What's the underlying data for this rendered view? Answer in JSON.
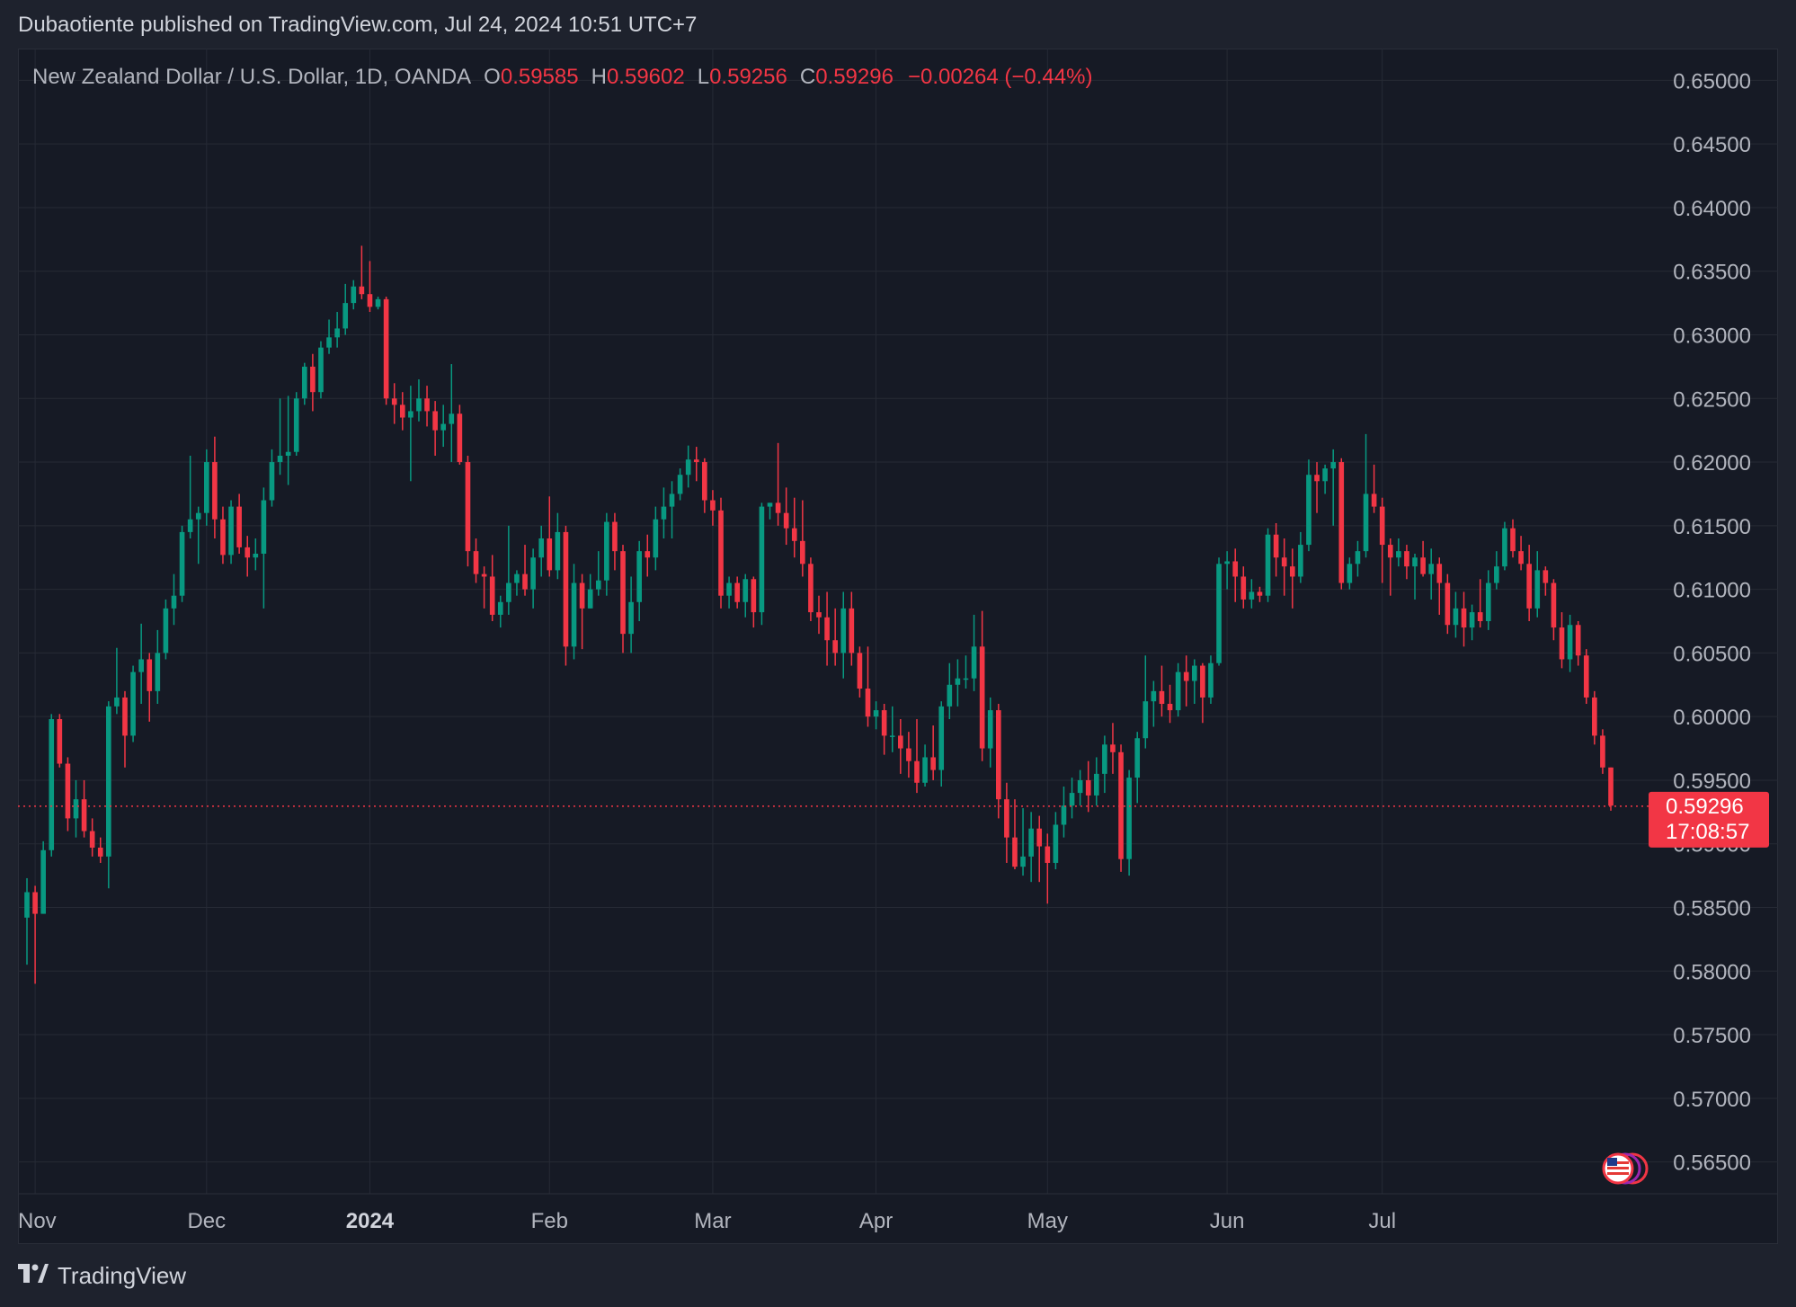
{
  "header": {
    "published_text": "Dubaotiente published on TradingView.com, Jul 24, 2024 10:51 UTC+7"
  },
  "legend": {
    "symbol": "New Zealand Dollar / U.S. Dollar, 1D, OANDA",
    "o_label": "O",
    "o_value": "0.59585",
    "h_label": "H",
    "h_value": "0.59602",
    "l_label": "L",
    "l_value": "0.59256",
    "c_label": "C",
    "c_value": "0.59296",
    "change": "−0.00264 (−0.44%)"
  },
  "price_tag": {
    "price": "0.59296",
    "countdown": "17:08:57"
  },
  "footer": {
    "brand": "TradingView"
  },
  "colors": {
    "up": "#089981",
    "down": "#f23645",
    "bg": "#161a25",
    "grid": "#262a35",
    "text": "#b2b5be"
  },
  "chart_data": {
    "type": "candlestick",
    "ylim": [
      0.5625,
      0.6525
    ],
    "yticks": [
      "0.65000",
      "0.64500",
      "0.64000",
      "0.63500",
      "0.63000",
      "0.62500",
      "0.62000",
      "0.61500",
      "0.61000",
      "0.60500",
      "0.60000",
      "0.59500",
      "0.59000",
      "0.58500",
      "0.58000",
      "0.57500",
      "0.57000",
      "0.56500"
    ],
    "xticks": [
      {
        "label": "Nov",
        "index": 1,
        "bold": false
      },
      {
        "label": "Dec",
        "index": 22,
        "bold": false
      },
      {
        "label": "2024",
        "index": 42,
        "bold": true
      },
      {
        "label": "Feb",
        "index": 64,
        "bold": false
      },
      {
        "label": "Mar",
        "index": 84,
        "bold": false
      },
      {
        "label": "Apr",
        "index": 104,
        "bold": false
      },
      {
        "label": "May",
        "index": 125,
        "bold": false
      },
      {
        "label": "Jun",
        "index": 147,
        "bold": false
      },
      {
        "label": "Jul",
        "index": 166,
        "bold": false
      }
    ],
    "last_close": 0.59296,
    "candles": [
      [
        0.5842,
        0.5873,
        0.5805,
        0.5862
      ],
      [
        0.5862,
        0.5867,
        0.579,
        0.5845
      ],
      [
        0.5845,
        0.5902,
        0.5845,
        0.5895
      ],
      [
        0.5895,
        0.6002,
        0.589,
        0.5998
      ],
      [
        0.5998,
        0.6002,
        0.596,
        0.5963
      ],
      [
        0.5963,
        0.5968,
        0.591,
        0.592
      ],
      [
        0.592,
        0.595,
        0.5905,
        0.5935
      ],
      [
        0.5935,
        0.595,
        0.5905,
        0.591
      ],
      [
        0.591,
        0.592,
        0.589,
        0.5897
      ],
      [
        0.5897,
        0.5905,
        0.5885,
        0.589
      ],
      [
        0.589,
        0.6012,
        0.5865,
        0.6008
      ],
      [
        0.6008,
        0.6054,
        0.6002,
        0.6015
      ],
      [
        0.6015,
        0.602,
        0.596,
        0.5985
      ],
      [
        0.5985,
        0.604,
        0.598,
        0.6035
      ],
      [
        0.6035,
        0.6073,
        0.601,
        0.6045
      ],
      [
        0.6045,
        0.605,
        0.5996,
        0.602
      ],
      [
        0.602,
        0.6068,
        0.601,
        0.605
      ],
      [
        0.605,
        0.6092,
        0.6045,
        0.6085
      ],
      [
        0.6085,
        0.6112,
        0.6072,
        0.6095
      ],
      [
        0.6095,
        0.615,
        0.609,
        0.6145
      ],
      [
        0.6145,
        0.6205,
        0.614,
        0.6155
      ],
      [
        0.6155,
        0.6165,
        0.612,
        0.616
      ],
      [
        0.616,
        0.621,
        0.615,
        0.62
      ],
      [
        0.62,
        0.622,
        0.614,
        0.6155
      ],
      [
        0.6155,
        0.6165,
        0.612,
        0.6127
      ],
      [
        0.6127,
        0.617,
        0.612,
        0.6165
      ],
      [
        0.6165,
        0.6175,
        0.6128,
        0.6133
      ],
      [
        0.6133,
        0.6142,
        0.611,
        0.6125
      ],
      [
        0.6125,
        0.614,
        0.6115,
        0.6128
      ],
      [
        0.6128,
        0.618,
        0.6085,
        0.617
      ],
      [
        0.617,
        0.621,
        0.6165,
        0.62
      ],
      [
        0.62,
        0.625,
        0.619,
        0.6205
      ],
      [
        0.6205,
        0.6252,
        0.6182,
        0.6208
      ],
      [
        0.6208,
        0.6255,
        0.6205,
        0.625
      ],
      [
        0.625,
        0.6278,
        0.6245,
        0.6275
      ],
      [
        0.6275,
        0.6285,
        0.624,
        0.6255
      ],
      [
        0.6255,
        0.6295,
        0.625,
        0.629
      ],
      [
        0.629,
        0.6312,
        0.6285,
        0.6298
      ],
      [
        0.6298,
        0.6318,
        0.629,
        0.6305
      ],
      [
        0.6305,
        0.634,
        0.63,
        0.6325
      ],
      [
        0.6325,
        0.6343,
        0.632,
        0.6338
      ],
      [
        0.6338,
        0.637,
        0.6328,
        0.6332
      ],
      [
        0.6332,
        0.6358,
        0.6318,
        0.6322
      ],
      [
        0.6322,
        0.633,
        0.632,
        0.6328
      ],
      [
        0.6328,
        0.633,
        0.6245,
        0.625
      ],
      [
        0.625,
        0.6262,
        0.623,
        0.6245
      ],
      [
        0.6245,
        0.6255,
        0.6225,
        0.6235
      ],
      [
        0.6235,
        0.626,
        0.6185,
        0.624
      ],
      [
        0.624,
        0.6265,
        0.6232,
        0.625
      ],
      [
        0.625,
        0.626,
        0.6228,
        0.624
      ],
      [
        0.624,
        0.6248,
        0.6205,
        0.6225
      ],
      [
        0.6225,
        0.6245,
        0.6212,
        0.623
      ],
      [
        0.623,
        0.6277,
        0.62,
        0.6238
      ],
      [
        0.6238,
        0.6245,
        0.6198,
        0.62
      ],
      [
        0.62,
        0.6205,
        0.6118,
        0.613
      ],
      [
        0.613,
        0.614,
        0.6105,
        0.6112
      ],
      [
        0.6112,
        0.6118,
        0.6085,
        0.611
      ],
      [
        0.611,
        0.6127,
        0.6075,
        0.608
      ],
      [
        0.608,
        0.6095,
        0.607,
        0.609
      ],
      [
        0.609,
        0.615,
        0.608,
        0.6105
      ],
      [
        0.6105,
        0.6115,
        0.6095,
        0.6112
      ],
      [
        0.6112,
        0.6135,
        0.6095,
        0.61
      ],
      [
        0.61,
        0.6132,
        0.6085,
        0.6125
      ],
      [
        0.6125,
        0.615,
        0.611,
        0.614
      ],
      [
        0.614,
        0.6173,
        0.611,
        0.6115
      ],
      [
        0.6115,
        0.616,
        0.6108,
        0.6145
      ],
      [
        0.6145,
        0.615,
        0.604,
        0.6055
      ],
      [
        0.6055,
        0.612,
        0.6045,
        0.6105
      ],
      [
        0.6105,
        0.6112,
        0.6053,
        0.6085
      ],
      [
        0.6085,
        0.6112,
        0.6085,
        0.61
      ],
      [
        0.61,
        0.613,
        0.6095,
        0.6107
      ],
      [
        0.6107,
        0.616,
        0.6095,
        0.6153
      ],
      [
        0.6153,
        0.616,
        0.6115,
        0.613
      ],
      [
        0.613,
        0.6135,
        0.605,
        0.6065
      ],
      [
        0.6065,
        0.611,
        0.605,
        0.609
      ],
      [
        0.609,
        0.6138,
        0.6075,
        0.613
      ],
      [
        0.613,
        0.6143,
        0.611,
        0.6125
      ],
      [
        0.6125,
        0.6165,
        0.6115,
        0.6155
      ],
      [
        0.6155,
        0.618,
        0.614,
        0.6165
      ],
      [
        0.6165,
        0.6185,
        0.614,
        0.6175
      ],
      [
        0.6175,
        0.6195,
        0.617,
        0.619
      ],
      [
        0.619,
        0.6213,
        0.618,
        0.6202
      ],
      [
        0.6202,
        0.6212,
        0.6185,
        0.62
      ],
      [
        0.62,
        0.6203,
        0.616,
        0.617
      ],
      [
        0.617,
        0.6178,
        0.615,
        0.6162
      ],
      [
        0.6162,
        0.6172,
        0.6085,
        0.6095
      ],
      [
        0.6095,
        0.611,
        0.6085,
        0.6105
      ],
      [
        0.6105,
        0.611,
        0.6085,
        0.609
      ],
      [
        0.609,
        0.6112,
        0.6078,
        0.6108
      ],
      [
        0.6108,
        0.611,
        0.607,
        0.6082
      ],
      [
        0.6082,
        0.6168,
        0.6072,
        0.6165
      ],
      [
        0.6165,
        0.6168,
        0.6155,
        0.6168
      ],
      [
        0.6168,
        0.6215,
        0.615,
        0.616
      ],
      [
        0.616,
        0.618,
        0.6135,
        0.6148
      ],
      [
        0.6148,
        0.6172,
        0.6125,
        0.6138
      ],
      [
        0.6138,
        0.617,
        0.611,
        0.612
      ],
      [
        0.612,
        0.6125,
        0.6075,
        0.6082
      ],
      [
        0.6082,
        0.6095,
        0.6065,
        0.6078
      ],
      [
        0.6078,
        0.6098,
        0.604,
        0.606
      ],
      [
        0.606,
        0.6085,
        0.604,
        0.605
      ],
      [
        0.605,
        0.6098,
        0.603,
        0.6085
      ],
      [
        0.6085,
        0.6098,
        0.604,
        0.605
      ],
      [
        0.605,
        0.6055,
        0.6015,
        0.6022
      ],
      [
        0.6022,
        0.6055,
        0.5992,
        0.6
      ],
      [
        0.6,
        0.6012,
        0.599,
        0.6005
      ],
      [
        0.6005,
        0.601,
        0.597,
        0.5985
      ],
      [
        0.5985,
        0.6008,
        0.5972,
        0.5985
      ],
      [
        0.5985,
        0.5998,
        0.5955,
        0.5975
      ],
      [
        0.5975,
        0.5988,
        0.5952,
        0.5965
      ],
      [
        0.5965,
        0.5998,
        0.594,
        0.5948
      ],
      [
        0.5948,
        0.5978,
        0.5945,
        0.5968
      ],
      [
        0.5968,
        0.5993,
        0.595,
        0.5958
      ],
      [
        0.5958,
        0.6012,
        0.5945,
        0.6008
      ],
      [
        0.6008,
        0.6042,
        0.5998,
        0.6025
      ],
      [
        0.6025,
        0.6045,
        0.6008,
        0.603
      ],
      [
        0.603,
        0.6048,
        0.6022,
        0.603
      ],
      [
        0.603,
        0.608,
        0.602,
        0.6055
      ],
      [
        0.6055,
        0.6083,
        0.5965,
        0.5975
      ],
      [
        0.5975,
        0.6015,
        0.596,
        0.6005
      ],
      [
        0.6005,
        0.601,
        0.592,
        0.5935
      ],
      [
        0.5935,
        0.5948,
        0.5885,
        0.5905
      ],
      [
        0.5905,
        0.5935,
        0.588,
        0.5882
      ],
      [
        0.5882,
        0.5928,
        0.5875,
        0.589
      ],
      [
        0.589,
        0.5925,
        0.587,
        0.5912
      ],
      [
        0.5912,
        0.5922,
        0.587,
        0.5898
      ],
      [
        0.5898,
        0.5908,
        0.5853,
        0.5885
      ],
      [
        0.5885,
        0.5925,
        0.588,
        0.5915
      ],
      [
        0.5915,
        0.5945,
        0.5905,
        0.593
      ],
      [
        0.593,
        0.5952,
        0.592,
        0.594
      ],
      [
        0.594,
        0.5958,
        0.593,
        0.595
      ],
      [
        0.595,
        0.5965,
        0.5925,
        0.5938
      ],
      [
        0.5938,
        0.5968,
        0.593,
        0.5955
      ],
      [
        0.5955,
        0.5985,
        0.594,
        0.5978
      ],
      [
        0.5978,
        0.5995,
        0.5955,
        0.5972
      ],
      [
        0.5972,
        0.5978,
        0.5878,
        0.5888
      ],
      [
        0.5888,
        0.5958,
        0.5875,
        0.5952
      ],
      [
        0.5952,
        0.5988,
        0.5932,
        0.5983
      ],
      [
        0.5983,
        0.6048,
        0.5975,
        0.6012
      ],
      [
        0.6012,
        0.6028,
        0.5992,
        0.602
      ],
      [
        0.602,
        0.604,
        0.6,
        0.601
      ],
      [
        0.601,
        0.6025,
        0.5995,
        0.6005
      ],
      [
        0.6005,
        0.6042,
        0.6,
        0.6035
      ],
      [
        0.6035,
        0.6048,
        0.6008,
        0.6028
      ],
      [
        0.6028,
        0.6045,
        0.601,
        0.604
      ],
      [
        0.604,
        0.6042,
        0.5995,
        0.6015
      ],
      [
        0.6015,
        0.6048,
        0.601,
        0.6042
      ],
      [
        0.6042,
        0.6125,
        0.604,
        0.612
      ],
      [
        0.612,
        0.613,
        0.61,
        0.6122
      ],
      [
        0.6122,
        0.6132,
        0.609,
        0.611
      ],
      [
        0.611,
        0.6118,
        0.6085,
        0.6092
      ],
      [
        0.6092,
        0.6108,
        0.6085,
        0.6098
      ],
      [
        0.6098,
        0.6102,
        0.609,
        0.6095
      ],
      [
        0.6095,
        0.6148,
        0.609,
        0.6143
      ],
      [
        0.6143,
        0.6152,
        0.611,
        0.6125
      ],
      [
        0.6125,
        0.614,
        0.6095,
        0.6118
      ],
      [
        0.6118,
        0.6132,
        0.6085,
        0.611
      ],
      [
        0.611,
        0.6145,
        0.6105,
        0.6135
      ],
      [
        0.6135,
        0.6202,
        0.613,
        0.619
      ],
      [
        0.619,
        0.62,
        0.616,
        0.6185
      ],
      [
        0.6185,
        0.6198,
        0.6175,
        0.6195
      ],
      [
        0.6195,
        0.621,
        0.615,
        0.62
      ],
      [
        0.62,
        0.6203,
        0.61,
        0.6105
      ],
      [
        0.6105,
        0.6125,
        0.61,
        0.612
      ],
      [
        0.612,
        0.6138,
        0.611,
        0.613
      ],
      [
        0.613,
        0.6222,
        0.6125,
        0.6175
      ],
      [
        0.6175,
        0.6198,
        0.616,
        0.6165
      ],
      [
        0.6165,
        0.6172,
        0.6105,
        0.6135
      ],
      [
        0.6135,
        0.614,
        0.6095,
        0.6125
      ],
      [
        0.6125,
        0.614,
        0.6118,
        0.613
      ],
      [
        0.613,
        0.6135,
        0.6108,
        0.6118
      ],
      [
        0.6118,
        0.6128,
        0.6092,
        0.6125
      ],
      [
        0.6125,
        0.6138,
        0.611,
        0.6112
      ],
      [
        0.6112,
        0.6132,
        0.6092,
        0.612
      ],
      [
        0.612,
        0.6125,
        0.608,
        0.6105
      ],
      [
        0.6105,
        0.6112,
        0.6065,
        0.6072
      ],
      [
        0.6072,
        0.6098,
        0.6062,
        0.6085
      ],
      [
        0.6085,
        0.6098,
        0.6055,
        0.607
      ],
      [
        0.607,
        0.6088,
        0.606,
        0.6082
      ],
      [
        0.6082,
        0.6108,
        0.607,
        0.6075
      ],
      [
        0.6075,
        0.6115,
        0.6068,
        0.6105
      ],
      [
        0.6105,
        0.613,
        0.61,
        0.6118
      ],
      [
        0.6118,
        0.6153,
        0.6115,
        0.6148
      ],
      [
        0.6148,
        0.6155,
        0.6125,
        0.613
      ],
      [
        0.613,
        0.6142,
        0.6115,
        0.612
      ],
      [
        0.612,
        0.6135,
        0.6075,
        0.6085
      ],
      [
        0.6085,
        0.613,
        0.6078,
        0.6115
      ],
      [
        0.6115,
        0.6118,
        0.6095,
        0.6105
      ],
      [
        0.6105,
        0.6108,
        0.606,
        0.607
      ],
      [
        0.607,
        0.6082,
        0.6038,
        0.6045
      ],
      [
        0.6045,
        0.608,
        0.6035,
        0.6072
      ],
      [
        0.6072,
        0.6075,
        0.604,
        0.6048
      ],
      [
        0.6048,
        0.6053,
        0.601,
        0.6015
      ],
      [
        0.6015,
        0.602,
        0.5978,
        0.5985
      ],
      [
        0.5985,
        0.599,
        0.5955,
        0.596
      ],
      [
        0.596,
        0.596,
        0.5926,
        0.593
      ]
    ]
  }
}
